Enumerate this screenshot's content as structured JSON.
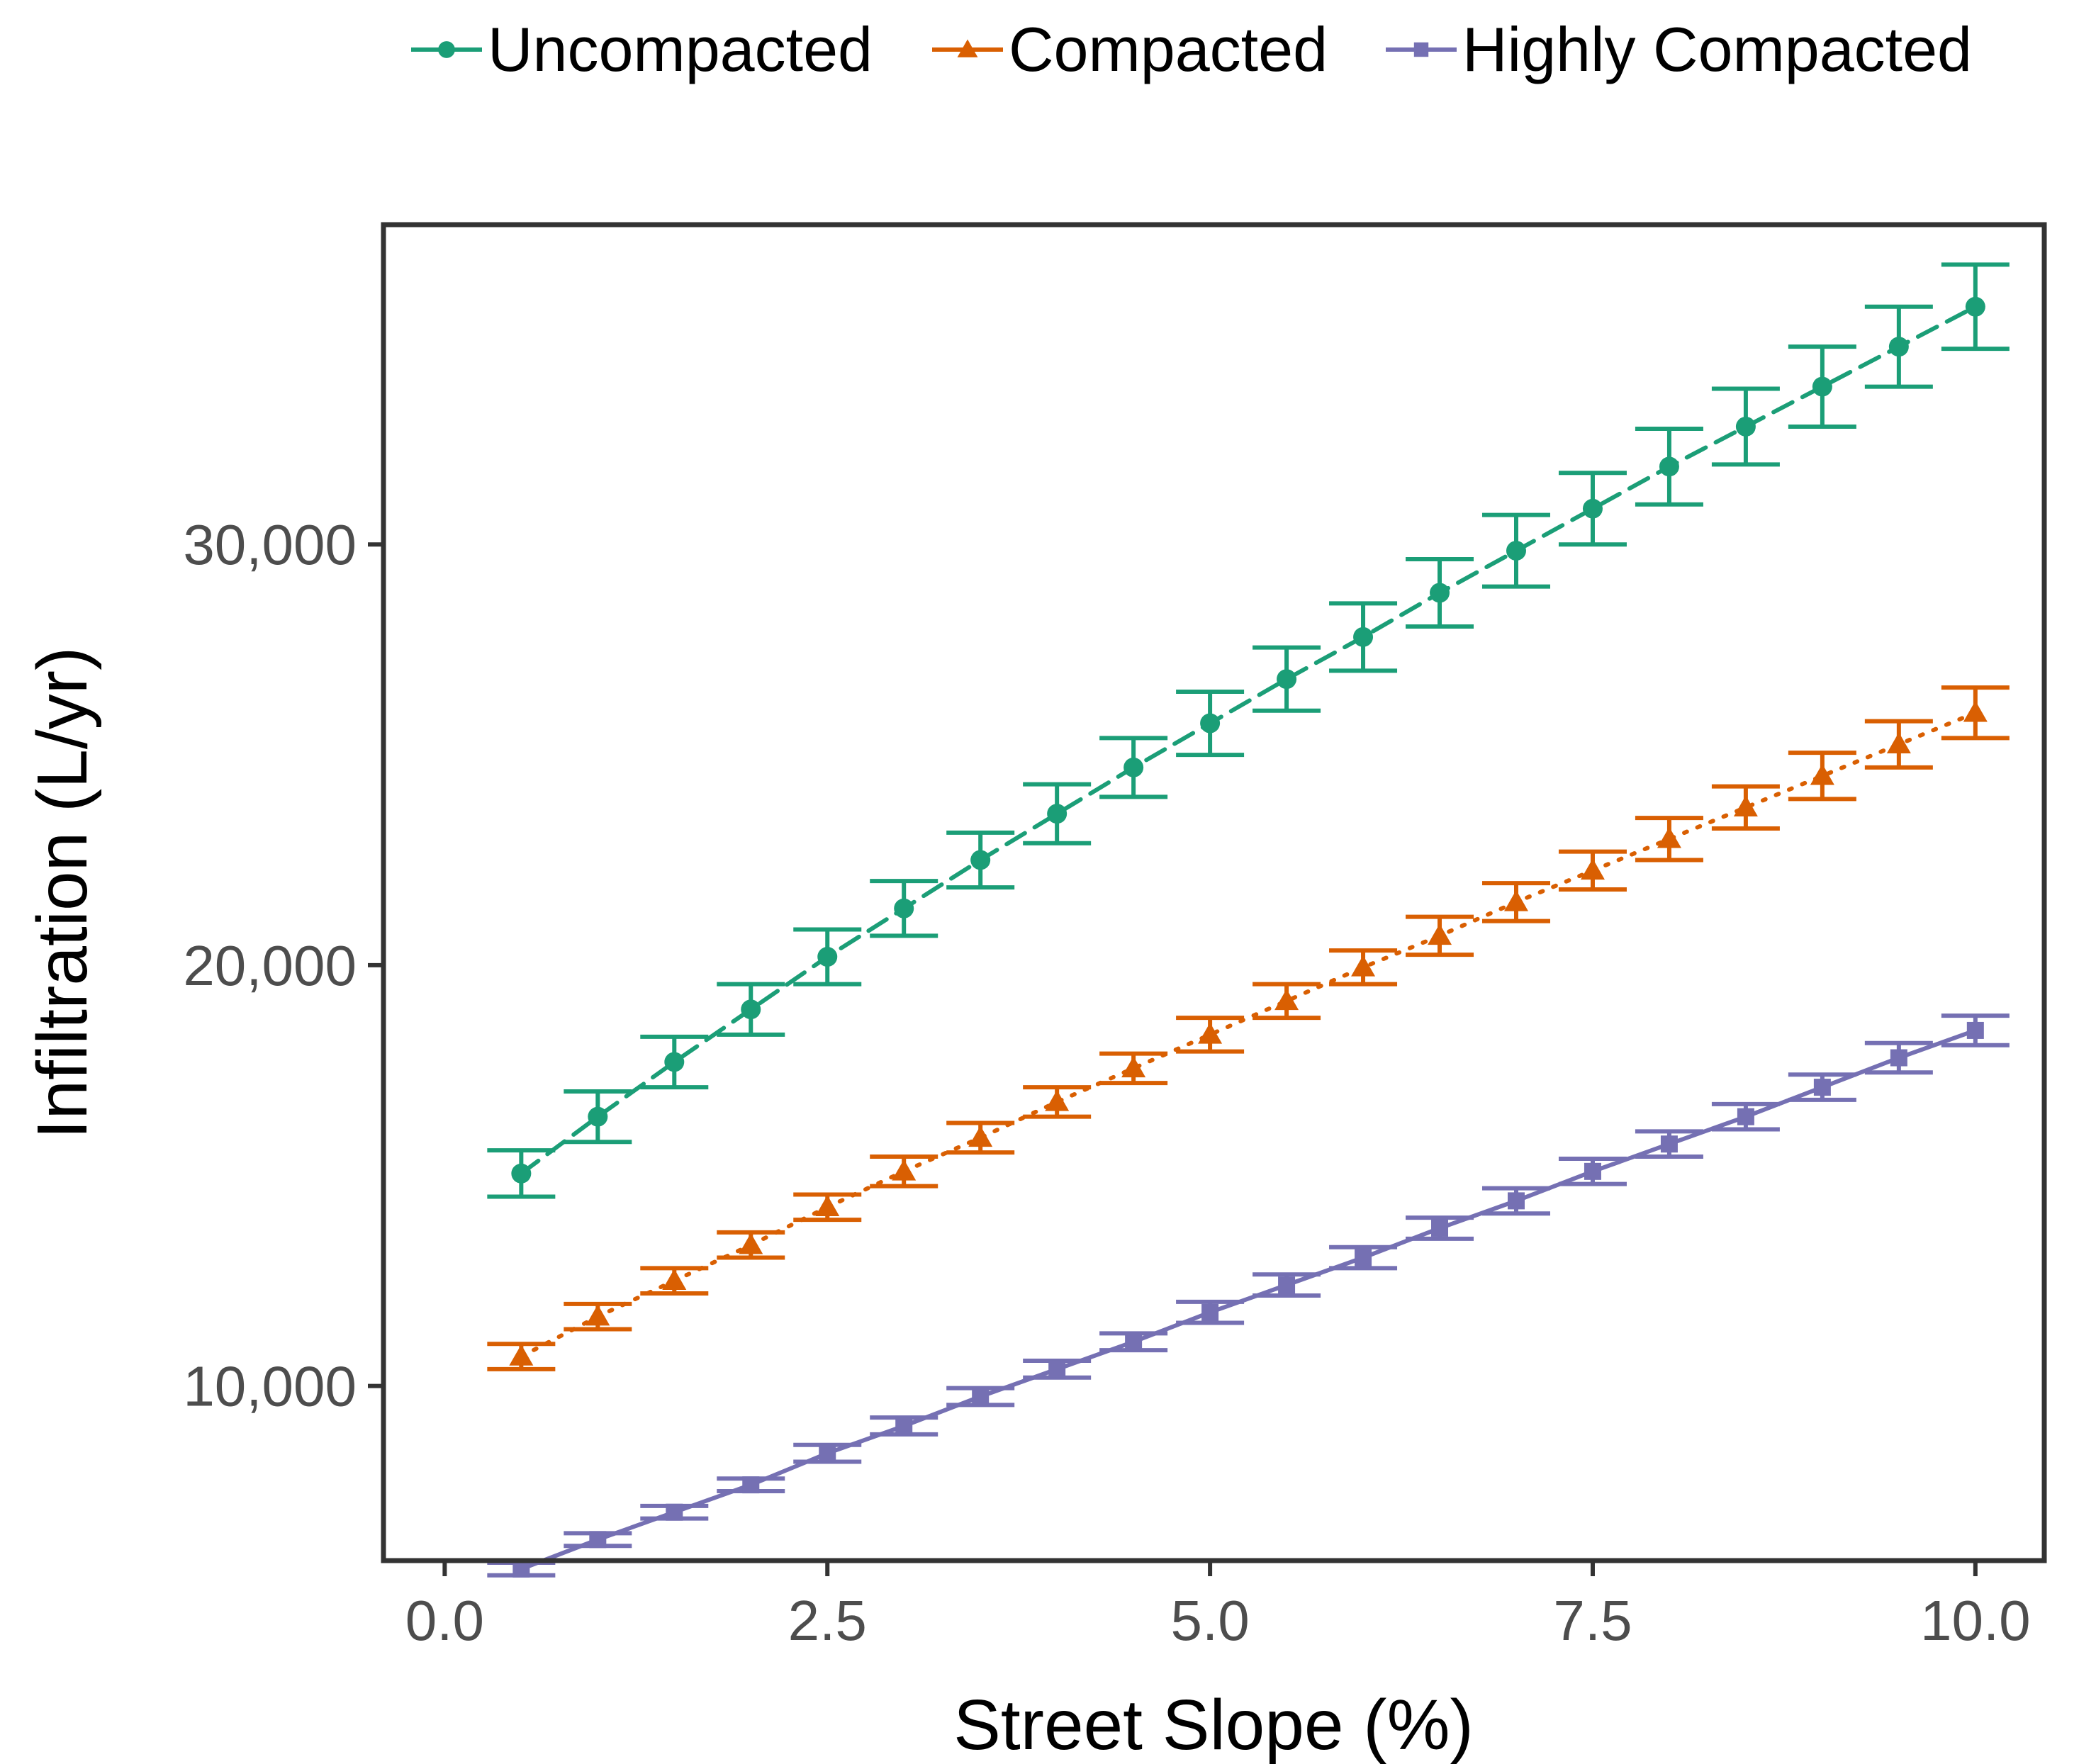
{
  "chart_data": {
    "type": "line",
    "title": "",
    "xlabel": "Street Slope (%)",
    "ylabel": "Infiltration (L/yr)",
    "xlim": [
      -0.4,
      10.45
    ],
    "ylim": [
      5850,
      37600
    ],
    "x_ticks": [
      0.0,
      2.5,
      5.0,
      7.5,
      10.0
    ],
    "x_tick_labels": [
      "0.0",
      "2.5",
      "5.0",
      "7.5",
      "10.0"
    ],
    "y_ticks": [
      10000,
      20000,
      30000
    ],
    "y_tick_labels": [
      "10,000",
      "20,000",
      "30,000"
    ],
    "grid": false,
    "legend_position": "top",
    "x": [
      0.5,
      1.0,
      1.5,
      2.0,
      2.5,
      3.0,
      3.5,
      4.0,
      4.5,
      5.0,
      5.5,
      6.0,
      6.5,
      7.0,
      7.5,
      8.0,
      8.5,
      9.0,
      9.5,
      10.0
    ],
    "series": [
      {
        "name": "Uncompacted",
        "color": "#1b9e77",
        "marker": "circle",
        "line_style": "dashed",
        "values": [
          15050,
          16400,
          17700,
          18950,
          20200,
          21350,
          22500,
          23600,
          24700,
          25750,
          26800,
          27800,
          28850,
          29850,
          30850,
          31850,
          32800,
          33750,
          34700,
          35650
        ],
        "error": [
          550,
          600,
          600,
          600,
          650,
          650,
          650,
          700,
          700,
          750,
          750,
          800,
          800,
          850,
          850,
          900,
          900,
          950,
          950,
          1000
        ]
      },
      {
        "name": "Compacted",
        "color": "#d95f02",
        "marker": "triangle",
        "line_style": "dotted",
        "values": [
          10700,
          11650,
          12500,
          13350,
          14250,
          15100,
          15900,
          16750,
          17550,
          18350,
          19150,
          19950,
          20700,
          21500,
          22250,
          23000,
          23750,
          24500,
          25250,
          26000
        ],
        "error": [
          300,
          300,
          300,
          300,
          300,
          350,
          350,
          350,
          350,
          400,
          400,
          400,
          450,
          450,
          450,
          500,
          500,
          550,
          550,
          600
        ]
      },
      {
        "name": "Highly Compacted",
        "color": "#7570b3",
        "marker": "square",
        "line_style": "solid",
        "values": [
          5650,
          6350,
          7000,
          7650,
          8400,
          9050,
          9750,
          10400,
          11050,
          11750,
          12400,
          13050,
          13750,
          14400,
          15100,
          15750,
          16400,
          17100,
          17800,
          18450
        ],
        "error": [
          150,
          150,
          150,
          150,
          200,
          200,
          200,
          200,
          200,
          250,
          250,
          250,
          250,
          300,
          300,
          300,
          300,
          300,
          350,
          350
        ]
      }
    ]
  }
}
